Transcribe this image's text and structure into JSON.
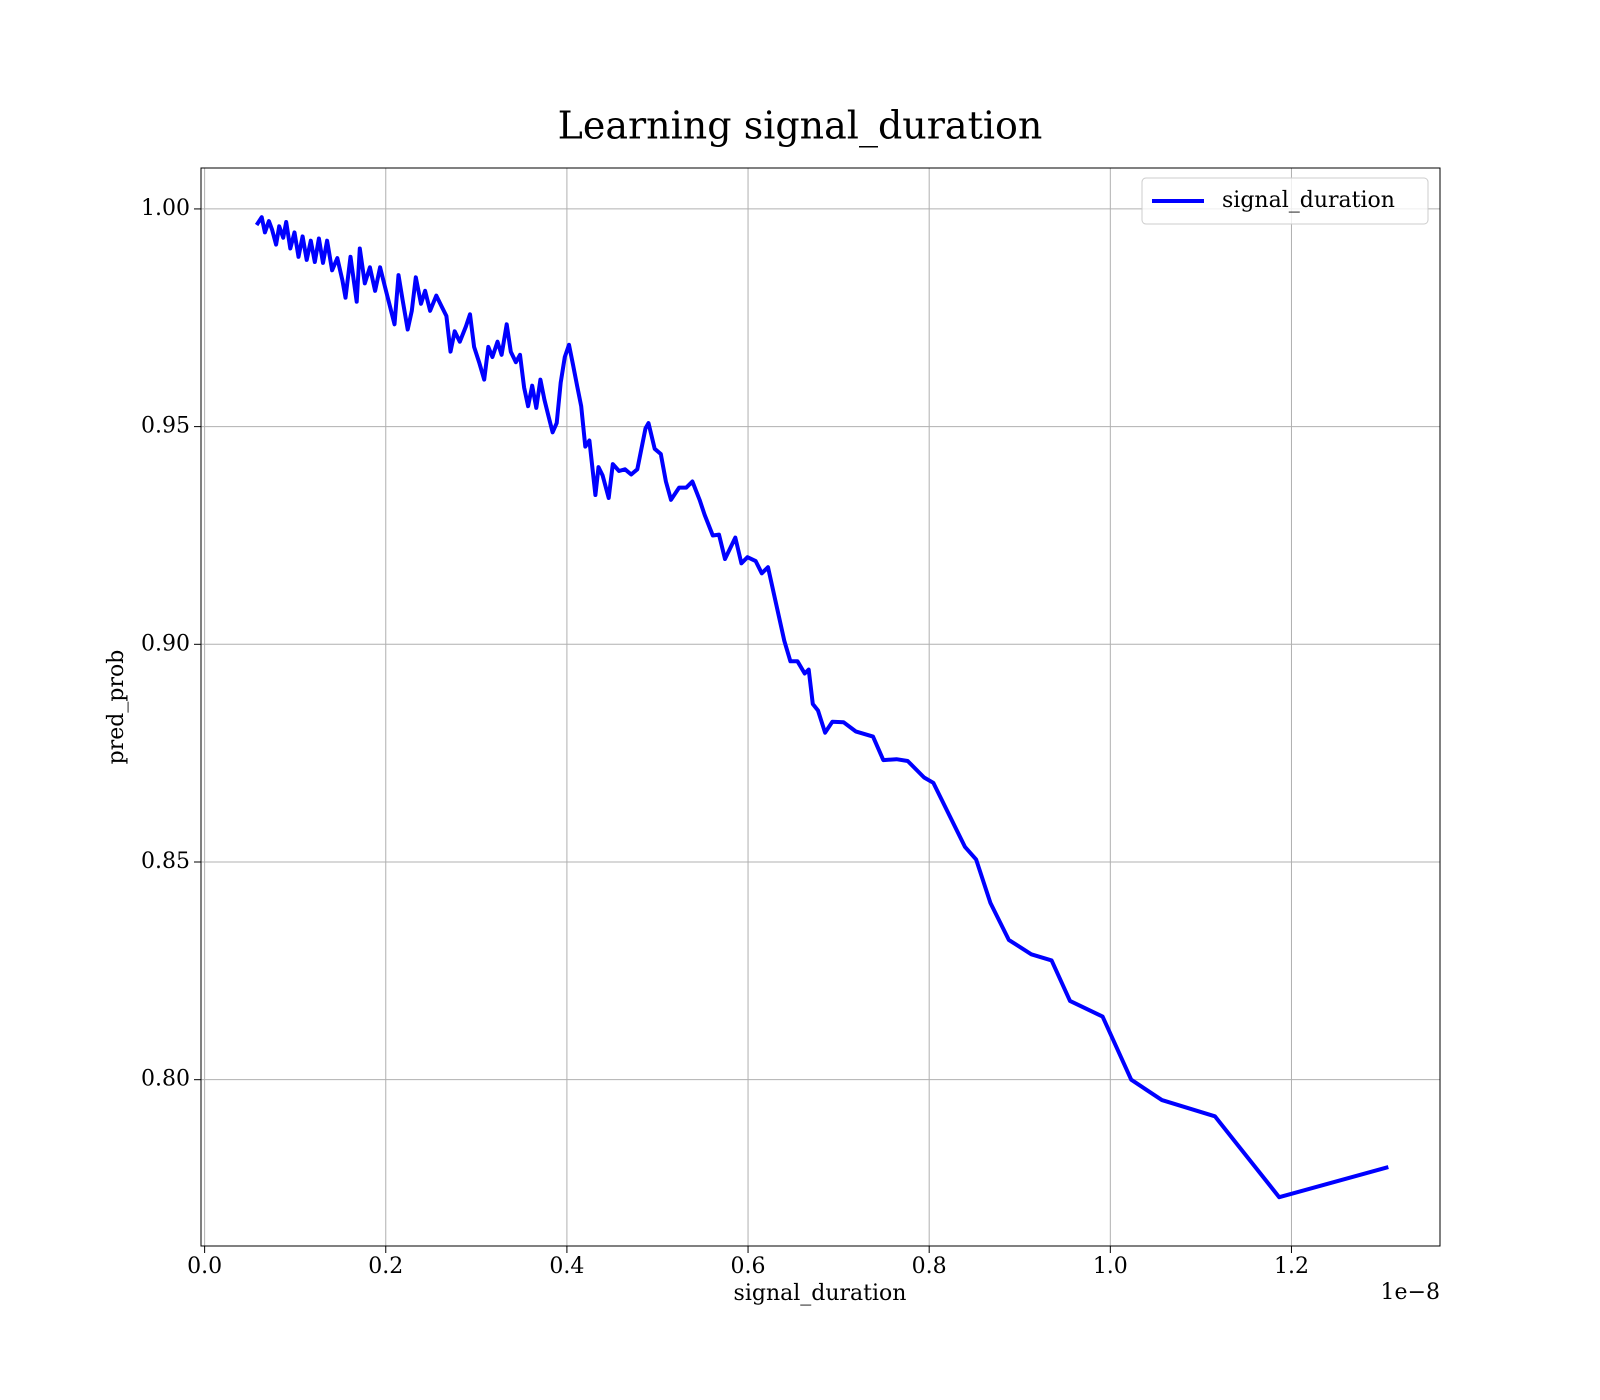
{
  "chart_data": {
    "type": "line",
    "title": "Learning signal_duration",
    "x_label": "signal_duration",
    "y_label": "pred_prob",
    "x_offset_label": "1e−8",
    "xlim": [
      -0.004,
      1.364
    ],
    "ylim": [
      0.7618,
      1.0094
    ],
    "xticks": [
      {
        "value": 0,
        "label": "0.0"
      },
      0.2,
      0.4,
      0.6,
      0.8,
      {
        "value": 1,
        "label": "1.0"
      },
      1.2
    ],
    "yticks": [
      {
        "value": 0.8,
        "label": "0.80"
      },
      0.85,
      {
        "value": 0.9,
        "label": "0.90"
      },
      0.95,
      {
        "value": 1,
        "label": "1.00"
      }
    ],
    "grid": true,
    "legend": "upper right",
    "x": [
      0.0586,
      0.063,
      0.0665,
      0.071,
      0.0744,
      0.0789,
      0.0823,
      0.0868,
      0.0901,
      0.0946,
      0.0992,
      0.1037,
      0.1082,
      0.1127,
      0.1172,
      0.1217,
      0.1262,
      0.1307,
      0.1352,
      0.1408,
      0.1465,
      0.1521,
      0.1555,
      0.1611,
      0.1679,
      0.1713,
      0.1769,
      0.1825,
      0.1882,
      0.1938,
      0.1994,
      0.2039,
      0.2096,
      0.2141,
      0.2186,
      0.2242,
      0.2287,
      0.2332,
      0.2389,
      0.2434,
      0.249,
      0.2558,
      0.2614,
      0.267,
      0.2715,
      0.2761,
      0.2817,
      0.2885,
      0.293,
      0.2975,
      0.3031,
      0.3087,
      0.3132,
      0.3177,
      0.3234,
      0.3279,
      0.3335,
      0.338,
      0.3437,
      0.3482,
      0.3527,
      0.3572,
      0.3617,
      0.3662,
      0.3707,
      0.3752,
      0.3797,
      0.3842,
      0.3887,
      0.3932,
      0.3977,
      0.4023,
      0.4068,
      0.4113,
      0.4158,
      0.4203,
      0.4248,
      0.4315,
      0.4349,
      0.4394,
      0.4462,
      0.4507,
      0.4575,
      0.4642,
      0.471,
      0.4777,
      0.4823,
      0.4868,
      0.4901,
      0.4969,
      0.5037,
      0.5093,
      0.5149,
      0.5239,
      0.5318,
      0.5386,
      0.5465,
      0.5521,
      0.5611,
      0.5679,
      0.5746,
      0.5859,
      0.5927,
      0.5994,
      0.6085,
      0.6152,
      0.622,
      0.631,
      0.64,
      0.6468,
      0.6546,
      0.6625,
      0.667,
      0.6715,
      0.6772,
      0.6851,
      0.693,
      0.7054,
      0.7189,
      0.738,
      0.7493,
      0.7639,
      0.7763,
      0.7944,
      0.8045,
      0.8394,
      0.8518,
      0.8676,
      0.8879,
      0.9127,
      0.9352,
      0.9555,
      0.9915,
      1.0231,
      1.0569,
      1.1155,
      1.1865,
      1.3048
    ],
    "series": [
      {
        "name": "signal_duration",
        "color": "#0000ff",
        "line_width": 4,
        "values": [
          0.9967,
          0.9981,
          0.9946,
          0.9972,
          0.9953,
          0.9918,
          0.996,
          0.9934,
          0.997,
          0.9909,
          0.9946,
          0.989,
          0.9937,
          0.9883,
          0.9927,
          0.9878,
          0.9932,
          0.9876,
          0.9927,
          0.9859,
          0.9887,
          0.9836,
          0.9796,
          0.989,
          0.9787,
          0.9909,
          0.9829,
          0.9866,
          0.9812,
          0.9866,
          0.9819,
          0.9782,
          0.9735,
          0.9848,
          0.9791,
          0.9723,
          0.9766,
          0.9843,
          0.9782,
          0.9812,
          0.9766,
          0.9801,
          0.9777,
          0.9754,
          0.9672,
          0.9719,
          0.9695,
          0.973,
          0.9758,
          0.9683,
          0.9648,
          0.9608,
          0.9683,
          0.966,
          0.9695,
          0.9665,
          0.9735,
          0.9672,
          0.9648,
          0.9665,
          0.959,
          0.9547,
          0.9594,
          0.9543,
          0.9608,
          0.9562,
          0.9524,
          0.9487,
          0.9508,
          0.9601,
          0.966,
          0.9688,
          0.9641,
          0.9594,
          0.9547,
          0.9454,
          0.9468,
          0.9343,
          0.9407,
          0.9388,
          0.9336,
          0.9414,
          0.9398,
          0.9402,
          0.939,
          0.9402,
          0.9449,
          0.9496,
          0.9508,
          0.9449,
          0.9437,
          0.9374,
          0.9332,
          0.936,
          0.936,
          0.9374,
          0.9332,
          0.9297,
          0.925,
          0.9252,
          0.9196,
          0.9245,
          0.9186,
          0.92,
          0.9191,
          0.9163,
          0.9177,
          0.9093,
          0.9008,
          0.8961,
          0.8961,
          0.8933,
          0.8942,
          0.8863,
          0.8848,
          0.8797,
          0.8822,
          0.8821,
          0.88,
          0.8788,
          0.8734,
          0.8736,
          0.8732,
          0.8694,
          0.8682,
          0.8535,
          0.8506,
          0.8406,
          0.8321,
          0.8288,
          0.8274,
          0.8181,
          0.8145,
          0.8,
          0.7953,
          0.7916,
          0.773,
          0.7798
        ]
      }
    ]
  }
}
